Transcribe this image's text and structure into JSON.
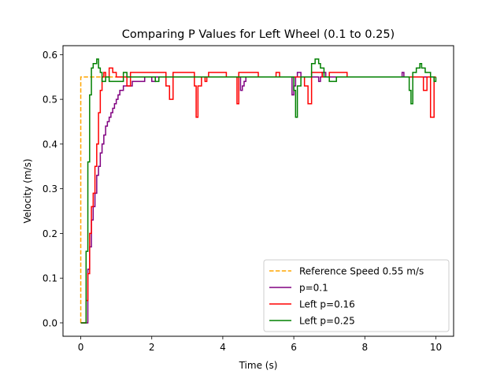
{
  "chart_data": {
    "type": "line",
    "title": "Comparing P Values for Left Wheel (0.1 to 0.25)",
    "xlabel": "Time (s)",
    "ylabel": "Velocity (m/s)",
    "xlim": [
      -0.5,
      10.5
    ],
    "ylim": [
      -0.03,
      0.62
    ],
    "xticks": [
      0,
      2,
      4,
      6,
      8,
      10
    ],
    "yticks": [
      0.0,
      0.1,
      0.2,
      0.3,
      0.4,
      0.5,
      0.6
    ],
    "xtick_labels": [
      "0",
      "2",
      "4",
      "6",
      "8",
      "10"
    ],
    "ytick_labels": [
      "0.0",
      "0.1",
      "0.2",
      "0.3",
      "0.4",
      "0.5",
      "0.6"
    ],
    "grid": false,
    "legend_position": "lower-right",
    "series": [
      {
        "name": "Reference Speed 0.55 m/s",
        "color": "#ffa500",
        "style": "dashed",
        "step": false,
        "x": [
          0,
          0,
          1.0
        ],
        "y": [
          0.0,
          0.55,
          0.55
        ]
      },
      {
        "name": "p=0.1",
        "color": "#800080",
        "style": "solid",
        "step": true,
        "x": [
          0,
          0.1,
          0.2,
          0.25,
          0.3,
          0.35,
          0.4,
          0.45,
          0.5,
          0.55,
          0.6,
          0.65,
          0.7,
          0.75,
          0.8,
          0.85,
          0.9,
          0.95,
          1.0,
          1.05,
          1.1,
          1.2,
          1.3,
          1.45,
          1.6,
          1.7,
          1.8,
          1.9,
          2.0,
          2.1,
          2.2,
          2.4,
          2.6,
          4.5,
          4.55,
          4.6,
          4.65,
          4.7,
          4.8,
          5.5,
          5.95,
          6.0,
          6.05,
          6.1,
          6.2,
          6.7,
          6.75,
          6.8,
          6.9,
          7.0,
          9.0,
          9.05,
          9.1,
          9.2,
          10.0
        ],
        "y": [
          0.0,
          0.0,
          0.12,
          0.17,
          0.23,
          0.26,
          0.29,
          0.33,
          0.35,
          0.38,
          0.4,
          0.42,
          0.44,
          0.45,
          0.46,
          0.47,
          0.48,
          0.49,
          0.5,
          0.51,
          0.52,
          0.53,
          0.53,
          0.54,
          0.54,
          0.54,
          0.55,
          0.55,
          0.54,
          0.55,
          0.55,
          0.55,
          0.55,
          0.52,
          0.53,
          0.54,
          0.55,
          0.55,
          0.55,
          0.55,
          0.51,
          0.53,
          0.55,
          0.56,
          0.55,
          0.54,
          0.55,
          0.56,
          0.55,
          0.55,
          0.55,
          0.56,
          0.55,
          0.55,
          0.55
        ]
      },
      {
        "name": "Left p=0.16",
        "color": "#ff0000",
        "style": "solid",
        "step": true,
        "x": [
          0,
          0.1,
          0.15,
          0.2,
          0.25,
          0.3,
          0.35,
          0.4,
          0.45,
          0.5,
          0.55,
          0.6,
          0.65,
          0.7,
          0.8,
          0.9,
          1.0,
          1.2,
          1.3,
          1.4,
          1.6,
          2.2,
          2.4,
          2.5,
          2.6,
          2.9,
          3.2,
          3.25,
          3.3,
          3.4,
          3.5,
          3.55,
          3.6,
          4.1,
          4.4,
          4.45,
          4.5,
          4.6,
          5.0,
          5.4,
          5.5,
          5.6,
          6.1,
          6.3,
          6.4,
          6.5,
          6.8,
          7.0,
          7.5,
          9.2,
          9.3,
          9.5,
          9.65,
          9.75,
          9.85,
          9.95,
          10.0
        ],
        "y": [
          0.0,
          0.0,
          0.05,
          0.11,
          0.2,
          0.26,
          0.29,
          0.35,
          0.4,
          0.47,
          0.52,
          0.55,
          0.56,
          0.55,
          0.57,
          0.56,
          0.55,
          0.55,
          0.53,
          0.56,
          0.56,
          0.56,
          0.53,
          0.5,
          0.56,
          0.56,
          0.53,
          0.46,
          0.53,
          0.55,
          0.54,
          0.55,
          0.56,
          0.55,
          0.49,
          0.56,
          0.56,
          0.56,
          0.55,
          0.55,
          0.56,
          0.55,
          0.55,
          0.53,
          0.49,
          0.56,
          0.55,
          0.56,
          0.55,
          0.55,
          0.55,
          0.55,
          0.52,
          0.55,
          0.46,
          0.55,
          0.55
        ]
      },
      {
        "name": "Left p=0.25",
        "color": "#008000",
        "style": "solid",
        "step": true,
        "x": [
          0,
          0.15,
          0.2,
          0.25,
          0.3,
          0.35,
          0.4,
          0.45,
          0.5,
          0.55,
          0.6,
          0.7,
          0.8,
          1.0,
          1.2,
          1.3,
          1.6,
          1.8,
          2.1,
          2.2,
          2.3,
          2.4,
          3.0,
          5.5,
          5.9,
          6.0,
          6.05,
          6.1,
          6.2,
          6.3,
          6.4,
          6.5,
          6.6,
          6.7,
          6.75,
          6.85,
          7.0,
          7.2,
          7.5,
          9.2,
          9.25,
          9.3,
          9.35,
          9.45,
          9.55,
          9.6,
          9.7,
          9.85,
          9.95,
          10.0
        ],
        "y": [
          0.0,
          0.16,
          0.36,
          0.51,
          0.57,
          0.58,
          0.58,
          0.59,
          0.57,
          0.56,
          0.54,
          0.55,
          0.54,
          0.54,
          0.56,
          0.55,
          0.55,
          0.55,
          0.54,
          0.55,
          0.55,
          0.55,
          0.55,
          0.55,
          0.55,
          0.52,
          0.46,
          0.53,
          0.55,
          0.55,
          0.55,
          0.58,
          0.59,
          0.58,
          0.57,
          0.55,
          0.54,
          0.55,
          0.55,
          0.55,
          0.52,
          0.49,
          0.56,
          0.57,
          0.58,
          0.57,
          0.56,
          0.55,
          0.54,
          0.55
        ]
      }
    ]
  }
}
